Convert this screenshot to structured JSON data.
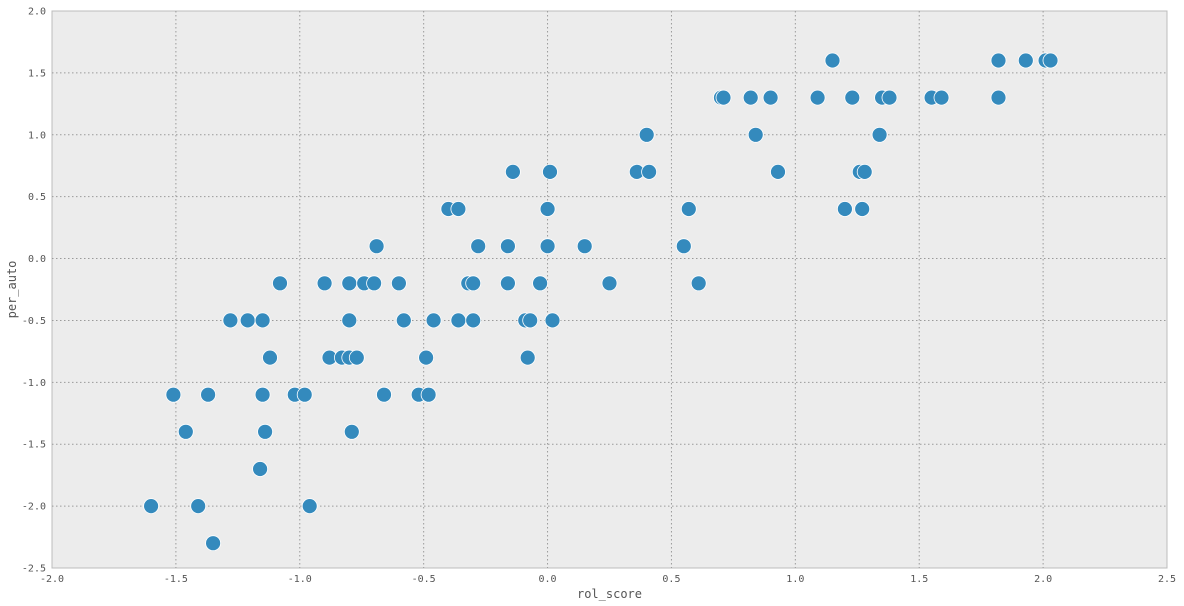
{
  "chart_data": {
    "type": "scatter",
    "xlabel": "rol_score",
    "ylabel": "per_auto",
    "xlim": [
      -2.0,
      2.5
    ],
    "ylim": [
      -2.5,
      2.0
    ],
    "grid": true,
    "xticks": [
      "-2.0",
      "-1.5",
      "-1.0",
      "-0.5",
      "0.0",
      "0.5",
      "1.0",
      "1.5",
      "2.0",
      "2.5"
    ],
    "yticks": [
      "-2.5",
      "-2.0",
      "-1.5",
      "-1.0",
      "-0.5",
      "0.0",
      "0.5",
      "1.0",
      "1.5",
      "2.0"
    ],
    "color": "#348ABD",
    "points": [
      [
        -1.6,
        -2.0
      ],
      [
        -1.41,
        -2.0
      ],
      [
        -1.35,
        -2.3
      ],
      [
        -1.16,
        -1.7
      ],
      [
        -0.96,
        -2.0
      ],
      [
        -1.51,
        -1.1
      ],
      [
        -1.37,
        -1.1
      ],
      [
        -1.15,
        -1.1
      ],
      [
        -1.02,
        -1.1
      ],
      [
        -0.98,
        -1.1
      ],
      [
        -0.66,
        -1.1
      ],
      [
        -0.52,
        -1.1
      ],
      [
        -0.48,
        -1.1
      ],
      [
        -1.46,
        -1.4
      ],
      [
        -1.14,
        -1.4
      ],
      [
        -0.79,
        -1.4
      ],
      [
        -1.12,
        -0.8
      ],
      [
        -0.88,
        -0.8
      ],
      [
        -0.83,
        -0.8
      ],
      [
        -0.8,
        -0.8
      ],
      [
        -0.77,
        -0.8
      ],
      [
        -0.49,
        -0.8
      ],
      [
        -0.08,
        -0.8
      ],
      [
        -1.28,
        -0.5
      ],
      [
        -1.21,
        -0.5
      ],
      [
        -1.15,
        -0.5
      ],
      [
        -0.8,
        -0.5
      ],
      [
        -0.58,
        -0.5
      ],
      [
        -0.46,
        -0.5
      ],
      [
        -0.36,
        -0.5
      ],
      [
        -0.3,
        -0.5
      ],
      [
        -0.09,
        -0.5
      ],
      [
        -0.07,
        -0.5
      ],
      [
        0.02,
        -0.5
      ],
      [
        -1.08,
        -0.2
      ],
      [
        -0.9,
        -0.2
      ],
      [
        -0.8,
        -0.2
      ],
      [
        -0.74,
        -0.2
      ],
      [
        -0.7,
        -0.2
      ],
      [
        -0.6,
        -0.2
      ],
      [
        -0.32,
        -0.2
      ],
      [
        -0.3,
        -0.2
      ],
      [
        -0.16,
        -0.2
      ],
      [
        -0.03,
        -0.2
      ],
      [
        0.25,
        -0.2
      ],
      [
        0.61,
        -0.2
      ],
      [
        -0.69,
        0.1
      ],
      [
        -0.28,
        0.1
      ],
      [
        -0.16,
        0.1
      ],
      [
        0.0,
        0.1
      ],
      [
        0.15,
        0.1
      ],
      [
        0.55,
        0.1
      ],
      [
        -0.4,
        0.4
      ],
      [
        -0.36,
        0.4
      ],
      [
        0.0,
        0.4
      ],
      [
        0.57,
        0.4
      ],
      [
        1.2,
        0.4
      ],
      [
        1.27,
        0.4
      ],
      [
        -0.14,
        0.7
      ],
      [
        0.01,
        0.7
      ],
      [
        0.36,
        0.7
      ],
      [
        0.41,
        0.7
      ],
      [
        0.93,
        0.7
      ],
      [
        1.26,
        0.7
      ],
      [
        1.28,
        0.7
      ],
      [
        0.4,
        1.0
      ],
      [
        0.84,
        1.0
      ],
      [
        1.34,
        1.0
      ],
      [
        0.7,
        1.3
      ],
      [
        0.71,
        1.3
      ],
      [
        0.82,
        1.3
      ],
      [
        0.9,
        1.3
      ],
      [
        1.09,
        1.3
      ],
      [
        1.23,
        1.3
      ],
      [
        1.35,
        1.3
      ],
      [
        1.38,
        1.3
      ],
      [
        1.55,
        1.3
      ],
      [
        1.59,
        1.3
      ],
      [
        1.82,
        1.3
      ],
      [
        1.15,
        1.6
      ],
      [
        1.82,
        1.6
      ],
      [
        1.93,
        1.6
      ],
      [
        2.01,
        1.6
      ],
      [
        2.03,
        1.6
      ]
    ]
  }
}
